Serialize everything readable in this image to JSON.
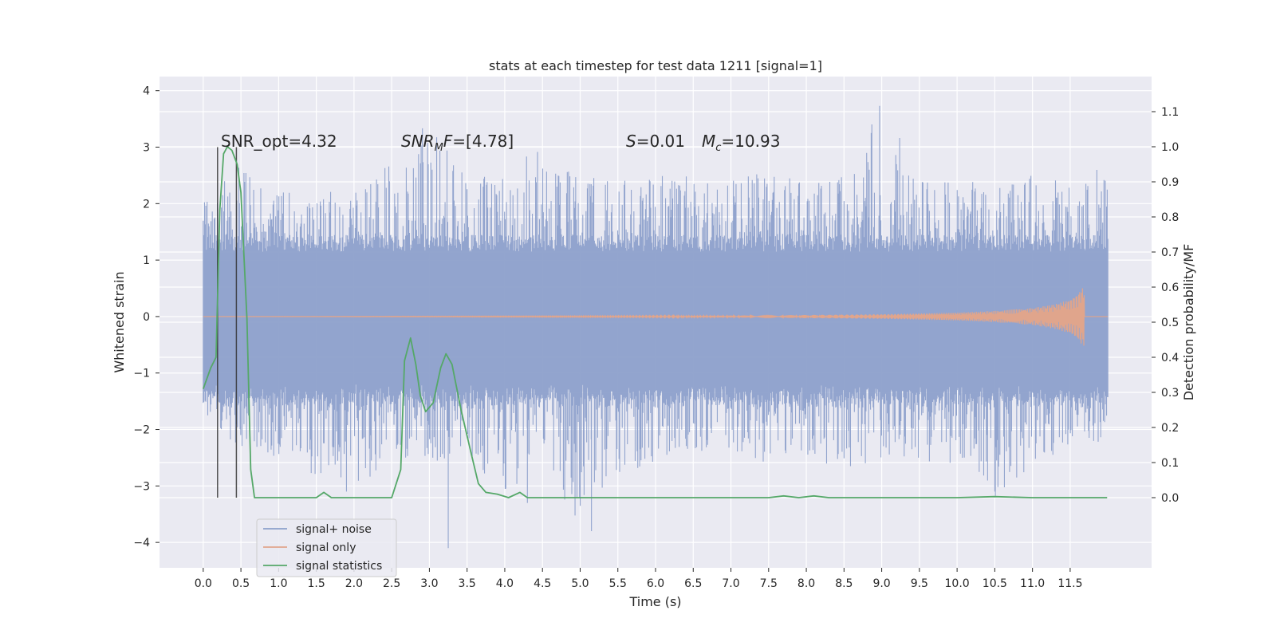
{
  "chart_data": {
    "type": "line",
    "title": "stats at each timestep for test data 1211 [signal=1]",
    "xlabel": "Time (s)",
    "ylabel": "Whitened strain",
    "ylabel_right": "Detection probability/MF",
    "xlim": [
      -0.58,
      12.58
    ],
    "ylim": [
      -4.45,
      4.25
    ],
    "ylim_right": [
      -0.2,
      1.2
    ],
    "x_ticks": [
      "0.0",
      "0.5",
      "1.0",
      "1.5",
      "2.0",
      "2.5",
      "3.0",
      "3.5",
      "4.0",
      "4.5",
      "5.0",
      "5.5",
      "6.0",
      "6.5",
      "7.0",
      "7.5",
      "8.0",
      "8.5",
      "9.0",
      "9.5",
      "10.0",
      "10.5",
      "11.0",
      "11.5"
    ],
    "y_ticks": [
      "4",
      "3",
      "2",
      "1",
      "0",
      "−1",
      "−2",
      "−3",
      "−4"
    ],
    "y_ticks_right": [
      "1.1",
      "1.0",
      "0.9",
      "0.8",
      "0.7",
      "0.6",
      "0.5",
      "0.4",
      "0.3",
      "0.2",
      "0.1",
      "0.0"
    ],
    "grid": true,
    "legend_position": "lower-left",
    "annotations": {
      "snr_opt": "SNR_opt=4.32",
      "snr_mf_main": "SNR",
      "snr_mf_sub": "M",
      "snr_mf_rest": "F",
      "snr_mf_value": "=[4.78]",
      "s_var": "S",
      "s_value": "=0.01",
      "mc_var": "M",
      "mc_sub": "c",
      "mc_value": "=10.93"
    },
    "vertical_markers": [
      0.19,
      0.44
    ],
    "series": [
      {
        "name": "signal+ noise",
        "color": "#8da0cb",
        "axis": "left",
        "envelope": {
          "x": [
            0.0,
            0.5,
            1.0,
            1.5,
            2.0,
            2.5,
            3.0,
            3.5,
            4.0,
            4.5,
            5.0,
            5.5,
            6.0,
            6.5,
            7.0,
            7.5,
            8.0,
            8.5,
            9.0,
            9.5,
            10.0,
            10.5,
            11.0,
            11.5,
            12.0
          ],
          "upper": [
            2.1,
            2.7,
            2.2,
            2.3,
            2.2,
            2.8,
            3.6,
            2.5,
            2.5,
            3.1,
            2.5,
            2.5,
            2.5,
            2.5,
            2.4,
            2.6,
            2.4,
            2.5,
            3.9,
            2.4,
            2.5,
            2.3,
            2.5,
            2.4,
            2.7
          ],
          "lower": [
            -2.2,
            -2.4,
            -2.5,
            -2.9,
            -3.1,
            -2.5,
            -2.6,
            -2.4,
            -3.3,
            -2.5,
            -3.8,
            -2.8,
            -2.6,
            -2.4,
            -2.4,
            -2.6,
            -2.5,
            -2.8,
            -2.5,
            -2.6,
            -2.6,
            -3.2,
            -2.7,
            -2.3,
            -2.2
          ]
        },
        "spikes": [
          [
            3.25,
            -4.1
          ],
          [
            5.15,
            -3.8
          ],
          [
            1.9,
            -3.1
          ],
          [
            4.3,
            -3.3
          ],
          [
            10.5,
            -3.1
          ]
        ]
      },
      {
        "name": "signal only",
        "color": "#e0a58c",
        "axis": "left",
        "x": [
          0.0,
          6.0,
          7.5,
          9.0,
          10.0,
          10.5,
          11.0,
          11.3,
          11.5,
          11.6,
          11.65,
          11.69
        ],
        "amplitude": [
          0.0,
          0.01,
          0.02,
          0.04,
          0.07,
          0.1,
          0.15,
          0.22,
          0.3,
          0.4,
          0.5,
          0.52
        ]
      },
      {
        "name": "signal statistics",
        "color": "#55a868",
        "axis": "right",
        "x": [
          0.0,
          0.1,
          0.17,
          0.22,
          0.27,
          0.32,
          0.38,
          0.45,
          0.5,
          0.58,
          0.63,
          0.68,
          0.75,
          0.9,
          1.2,
          1.5,
          1.6,
          1.7,
          2.0,
          2.3,
          2.5,
          2.62,
          2.67,
          2.75,
          2.82,
          2.88,
          2.95,
          3.05,
          3.15,
          3.22,
          3.3,
          3.42,
          3.55,
          3.65,
          3.75,
          3.9,
          4.05,
          4.2,
          4.3,
          4.5,
          5.0,
          5.5,
          6.0,
          6.5,
          7.0,
          7.5,
          7.7,
          7.9,
          8.1,
          8.3,
          8.6,
          9.0,
          9.5,
          10.0,
          10.5,
          11.0,
          11.5,
          11.99
        ],
        "values": [
          0.31,
          0.37,
          0.4,
          0.82,
          0.98,
          1.0,
          0.99,
          0.95,
          0.87,
          0.51,
          0.08,
          0.0,
          0.0,
          0.0,
          0.0,
          0.0,
          0.015,
          0.0,
          0.0,
          0.0,
          0.0,
          0.08,
          0.39,
          0.455,
          0.38,
          0.29,
          0.245,
          0.27,
          0.37,
          0.41,
          0.38,
          0.25,
          0.13,
          0.04,
          0.015,
          0.01,
          0.0,
          0.015,
          0.0,
          0.0,
          0.0,
          0.0,
          0.0,
          0.0,
          0.0,
          0.0,
          0.005,
          0.0,
          0.005,
          0.0,
          0.0,
          0.0,
          0.0,
          0.0,
          0.003,
          0.0,
          0.0,
          0.0
        ]
      }
    ]
  }
}
